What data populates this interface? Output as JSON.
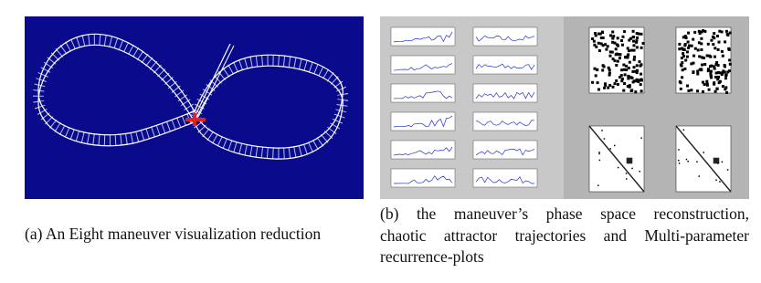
{
  "figure": {
    "subfigures": [
      {
        "caption": "(a) An Eight maneuver visualization reduction"
      },
      {
        "caption_lines": [
          "(b) the maneuver’s phase space reconstruction,",
          "chaotic attractor trajectories and Multi-parameter",
          "recurrence-plots"
        ]
      }
    ]
  }
}
